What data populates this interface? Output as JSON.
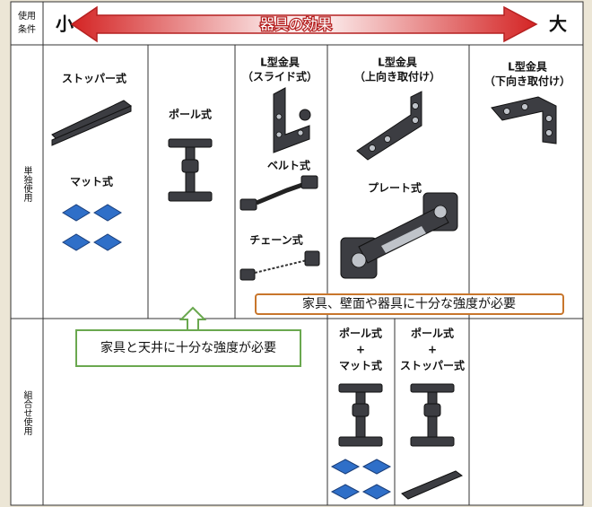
{
  "header": {
    "condition_label": [
      "使用",
      "条件"
    ],
    "small": "小",
    "effect": "器具の効果",
    "large": "大"
  },
  "rows": {
    "single": "単独使用",
    "combined": "組合せ使用"
  },
  "items": {
    "stopper": [
      "ストッパー式"
    ],
    "mat": [
      "マット式"
    ],
    "pole": [
      "ポール式"
    ],
    "l_slide": [
      "L型金具",
      "（スライド式）"
    ],
    "belt": [
      "ベルト式"
    ],
    "chain": [
      "チェーン式"
    ],
    "l_up": [
      "L型金具",
      "（上向き取付け）"
    ],
    "plate": [
      "プレート式"
    ],
    "l_down": [
      "L型金具",
      "（下向き取付け）"
    ]
  },
  "notes": {
    "walls": "家具、壁面や器具に十分な強度が必要",
    "ceiling": "家具と天井に十分な強度が必要"
  },
  "combinations": [
    [
      "ポール式",
      "+",
      "マット式"
    ],
    [
      "ポール式",
      "+",
      "ストッパー式"
    ]
  ]
}
